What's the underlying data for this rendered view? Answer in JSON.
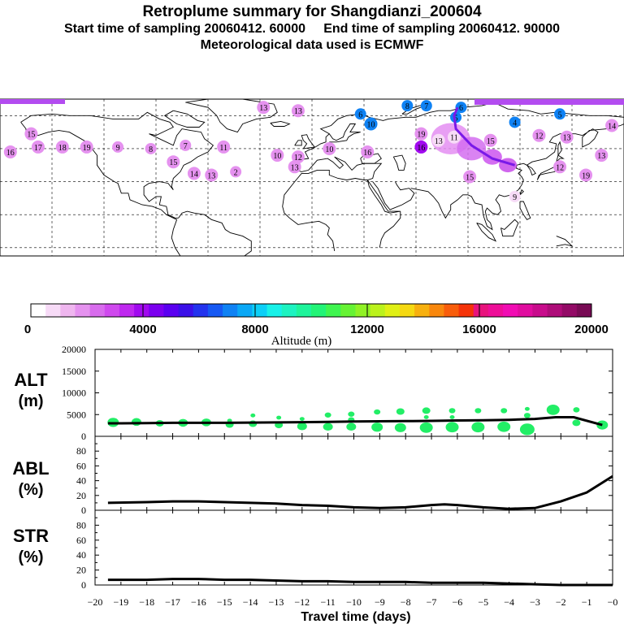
{
  "header": {
    "title": "Retroplume summary for Shangdianzi_200604",
    "line2": "Start time of sampling 20060412. 60000     End time of sampling 20060412. 90000",
    "line3": "Meteorological data used is ECMWF"
  },
  "colorbar": {
    "colors": [
      "#ffffff",
      "#f7dbf7",
      "#efb6ef",
      "#e592ef",
      "#d86ced",
      "#cf49ee",
      "#bf28ef",
      "#a10aef",
      "#7b00ef",
      "#5a00f0",
      "#3b10e8",
      "#2333ee",
      "#1659f3",
      "#0f82f4",
      "#0aa8f6",
      "#0ccff7",
      "#18f1e8",
      "#1df3c1",
      "#1ef49b",
      "#22f477",
      "#3ff550",
      "#66f334",
      "#90f225",
      "#bbf21c",
      "#e0f015",
      "#f5d912",
      "#f7b00f",
      "#f8870d",
      "#f85d0b",
      "#f53309",
      "#e8137d",
      "#ee0e98",
      "#f10db3",
      "#e00d9f",
      "#c80c8c",
      "#ae0c79",
      "#930a66",
      "#780a54"
    ],
    "tick_labels": [
      "0",
      "4000",
      "8000",
      "12000",
      "16000",
      "20000"
    ],
    "label": "Altitude (m)"
  },
  "panels": {
    "alt_label": "ALT",
    "alt_unit": "(m)",
    "abl_label": "ABL",
    "abl_unit": "(%)",
    "str_label": "STR",
    "str_unit": "(%)",
    "alt_ticks": [
      "20000",
      "15000",
      "10000",
      "5000",
      "0"
    ],
    "pct_ticks": [
      "80",
      "60",
      "40",
      "20",
      "0"
    ],
    "x_ticks": [
      "−20",
      "−19",
      "−18",
      "−17",
      "−16",
      "−15",
      "−14",
      "−13",
      "−12",
      "−11",
      "−10",
      "−9",
      "−8",
      "−7",
      "−6",
      "−5",
      "−4",
      "−3",
      "−2",
      "−1",
      "−0"
    ],
    "xlabel": "Travel time (days)"
  },
  "map_clusters": [
    {
      "label": "13",
      "lon": -28,
      "lat": 75,
      "alt": 2000
    },
    {
      "label": "13",
      "lon": -8,
      "lat": 73,
      "alt": 2000
    },
    {
      "label": "8",
      "lon": 55,
      "lat": 76,
      "alt": 7000
    },
    {
      "label": "7",
      "lon": 66,
      "lat": 76,
      "alt": 7000
    },
    {
      "label": "6",
      "lon": 28,
      "lat": 71,
      "alt": 7000
    },
    {
      "label": "10",
      "lon": 34,
      "lat": 65,
      "alt": 7000
    },
    {
      "label": "6",
      "lon": 86,
      "lat": 75,
      "alt": 7000
    },
    {
      "label": "5",
      "lon": 83,
      "lat": 69,
      "alt": 7000
    },
    {
      "label": "5",
      "lon": 143,
      "lat": 71,
      "alt": 7000
    },
    {
      "label": "14",
      "lon": 173,
      "lat": 64,
      "alt": 2000
    },
    {
      "label": "15",
      "lon": -162,
      "lat": 59,
      "alt": 2000
    },
    {
      "label": "16",
      "lon": -174,
      "lat": 48,
      "alt": 2000
    },
    {
      "label": "17",
      "lon": -158,
      "lat": 51,
      "alt": 2000
    },
    {
      "label": "18",
      "lon": -144,
      "lat": 51,
      "alt": 2000
    },
    {
      "label": "19",
      "lon": -130,
      "lat": 51,
      "alt": 2000
    },
    {
      "label": "9",
      "lon": -112,
      "lat": 51,
      "alt": 2000
    },
    {
      "label": "8",
      "lon": -93,
      "lat": 50,
      "alt": 2000
    },
    {
      "label": "7",
      "lon": -73,
      "lat": 52,
      "alt": 2000
    },
    {
      "label": "11",
      "lon": -51,
      "lat": 51,
      "alt": 2000
    },
    {
      "label": "15",
      "lon": -80,
      "lat": 42,
      "alt": 2000
    },
    {
      "label": "14",
      "lon": -68,
      "lat": 35,
      "alt": 2000
    },
    {
      "label": "13",
      "lon": -58,
      "lat": 34,
      "alt": 2000
    },
    {
      "label": "2",
      "lon": -44,
      "lat": 36,
      "alt": 2000
    },
    {
      "label": "10",
      "lon": -20,
      "lat": 46,
      "alt": 2000
    },
    {
      "label": "12",
      "lon": -8,
      "lat": 45,
      "alt": 2000
    },
    {
      "label": "13",
      "lon": -10,
      "lat": 39,
      "alt": 2000
    },
    {
      "label": "10",
      "lon": 10,
      "lat": 50,
      "alt": 2000
    },
    {
      "label": "16",
      "lon": 32,
      "lat": 48,
      "alt": 2000
    },
    {
      "label": "19",
      "lon": 63,
      "lat": 59,
      "alt": 2000
    },
    {
      "label": "16",
      "lon": 63,
      "lat": 51,
      "alt": 4000
    },
    {
      "label": "13",
      "lon": 73,
      "lat": 55,
      "alt": 1000
    },
    {
      "label": "11",
      "lon": 82,
      "lat": 57,
      "alt": 1000
    },
    {
      "label": "15",
      "lon": 103,
      "lat": 55,
      "alt": 2000
    },
    {
      "label": "4",
      "lon": 117,
      "lat": 66,
      "alt": 7000
    },
    {
      "label": "15",
      "lon": 91,
      "lat": 33,
      "alt": 2000
    },
    {
      "label": "9",
      "lon": 117,
      "lat": 21,
      "alt": 1000
    },
    {
      "label": "12",
      "lon": 131,
      "lat": 58,
      "alt": 2000
    },
    {
      "label": "13",
      "lon": 147,
      "lat": 57,
      "alt": 2000
    },
    {
      "label": "12",
      "lon": 143,
      "lat": 39,
      "alt": 2000
    },
    {
      "label": "19",
      "lon": 158,
      "lat": 34,
      "alt": 2000
    },
    {
      "label": "13",
      "lon": 167,
      "lat": 46,
      "alt": 2000
    }
  ],
  "chart_data": [
    {
      "type": "scatter+line",
      "title": "ALT",
      "ylabel": "ALT (m)",
      "xlabel": "Travel time (days)",
      "xlim": [
        -20,
        0
      ],
      "ylim": [
        0,
        20000
      ],
      "line_x": [
        -19.5,
        -19,
        -18,
        -17,
        -16,
        -15,
        -14,
        -13,
        -12,
        -11,
        -10,
        -9,
        -8,
        -7,
        -6,
        -5,
        -4,
        -3,
        -2.2,
        -1.5,
        -0.4
      ],
      "line_y": [
        3000,
        3000,
        3050,
        3100,
        3100,
        3100,
        3150,
        3200,
        3250,
        3300,
        3400,
        3450,
        3500,
        3550,
        3650,
        3700,
        3800,
        4000,
        4400,
        4400,
        2600
      ],
      "points": [
        {
          "x": -19.3,
          "y": 3200,
          "s": 7
        },
        {
          "x": -18.4,
          "y": 3300,
          "s": 6
        },
        {
          "x": -17.5,
          "y": 3000,
          "s": 5
        },
        {
          "x": -16.6,
          "y": 3100,
          "s": 6
        },
        {
          "x": -15.7,
          "y": 3200,
          "s": 6
        },
        {
          "x": -14.8,
          "y": 2700,
          "s": 5
        },
        {
          "x": -14.8,
          "y": 3600,
          "s": 3
        },
        {
          "x": -13.9,
          "y": 2900,
          "s": 5
        },
        {
          "x": -13.9,
          "y": 4800,
          "s": 3
        },
        {
          "x": -12.9,
          "y": 2600,
          "s": 5
        },
        {
          "x": -12.9,
          "y": 4300,
          "s": 3
        },
        {
          "x": -12,
          "y": 2300,
          "s": 6
        },
        {
          "x": -12,
          "y": 4000,
          "s": 3
        },
        {
          "x": -11,
          "y": 2200,
          "s": 6
        },
        {
          "x": -11,
          "y": 4900,
          "s": 4
        },
        {
          "x": -10.1,
          "y": 2200,
          "s": 6
        },
        {
          "x": -10.1,
          "y": 3800,
          "s": 4
        },
        {
          "x": -10.1,
          "y": 5100,
          "s": 4
        },
        {
          "x": -9.1,
          "y": 2100,
          "s": 7
        },
        {
          "x": -9.1,
          "y": 5600,
          "s": 4
        },
        {
          "x": -8.2,
          "y": 2000,
          "s": 7
        },
        {
          "x": -8.2,
          "y": 5700,
          "s": 5
        },
        {
          "x": -7.2,
          "y": 2000,
          "s": 8
        },
        {
          "x": -7.2,
          "y": 4400,
          "s": 3
        },
        {
          "x": -7.2,
          "y": 5900,
          "s": 5
        },
        {
          "x": -6.2,
          "y": 2100,
          "s": 8
        },
        {
          "x": -6.2,
          "y": 4400,
          "s": 3
        },
        {
          "x": -6.2,
          "y": 5900,
          "s": 4
        },
        {
          "x": -5.2,
          "y": 2100,
          "s": 8
        },
        {
          "x": -5.2,
          "y": 5900,
          "s": 4
        },
        {
          "x": -4.2,
          "y": 2200,
          "s": 8
        },
        {
          "x": -4.2,
          "y": 5900,
          "s": 4
        },
        {
          "x": -3.3,
          "y": 1600,
          "s": 9
        },
        {
          "x": -3.3,
          "y": 4800,
          "s": 4
        },
        {
          "x": -3.3,
          "y": 6300,
          "s": 3
        },
        {
          "x": -2.3,
          "y": 6100,
          "s": 8
        },
        {
          "x": -1.4,
          "y": 3100,
          "s": 5
        },
        {
          "x": -1.4,
          "y": 6100,
          "s": 4
        },
        {
          "x": -0.4,
          "y": 2600,
          "s": 7
        }
      ]
    },
    {
      "type": "line",
      "title": "ABL",
      "ylabel": "ABL (%)",
      "xlim": [
        -20,
        0
      ],
      "ylim": [
        0,
        100
      ],
      "x": [
        -19.5,
        -18,
        -17,
        -16,
        -15,
        -14,
        -13,
        -12,
        -11,
        -10,
        -9,
        -8,
        -7,
        -6.5,
        -6,
        -5,
        -4,
        -3,
        -2,
        -1,
        0
      ],
      "y": [
        10,
        11,
        12,
        12,
        11,
        10,
        9,
        7,
        6,
        4,
        3,
        4,
        7,
        8,
        7,
        4,
        2,
        3,
        12,
        24,
        46
      ]
    },
    {
      "type": "line",
      "title": "STR",
      "ylabel": "STR (%)",
      "xlim": [
        -20,
        0
      ],
      "ylim": [
        0,
        100
      ],
      "x": [
        -19.5,
        -18,
        -17,
        -16,
        -15,
        -14,
        -13,
        -12,
        -11,
        -10,
        -9,
        -8,
        -7,
        -6,
        -5,
        -4,
        -3,
        -2,
        -1,
        0
      ],
      "y": [
        7,
        7,
        8,
        8,
        7,
        7,
        6,
        5,
        5,
        4,
        4,
        4,
        3,
        3,
        3,
        2,
        1,
        0,
        0,
        0
      ]
    }
  ]
}
